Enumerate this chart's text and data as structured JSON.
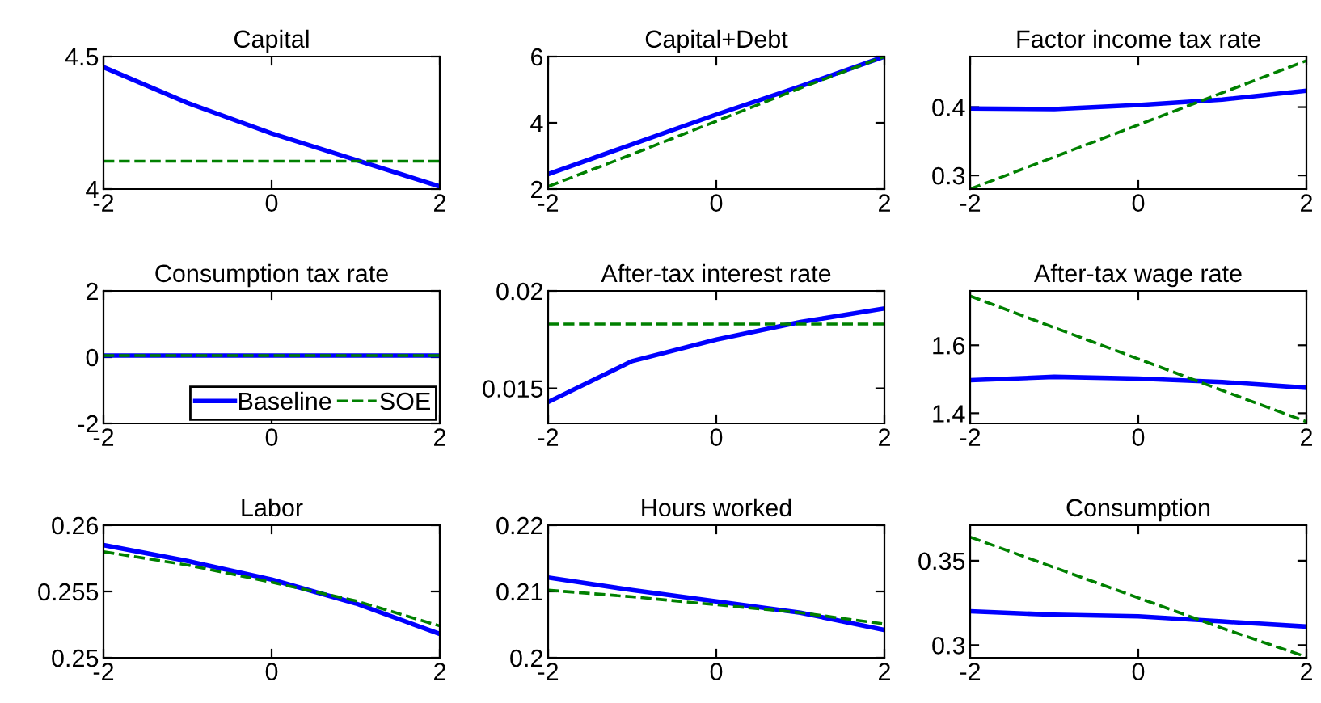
{
  "chart_data": [
    {
      "type": "line",
      "title": "Capital",
      "x": [
        -2,
        -1,
        0,
        1,
        2
      ],
      "xlim": [
        -2,
        2
      ],
      "xticks": [
        -2,
        0,
        2
      ],
      "ylim": [
        4,
        4.5
      ],
      "yticks": [
        4,
        4.5
      ],
      "series": [
        {
          "color": "#0000ff",
          "values": [
            4.46,
            4.325,
            4.21,
            4.11,
            4.01
          ]
        },
        {
          "color": "#008000",
          "line_style": "dashed",
          "values": [
            4.105,
            4.105,
            4.105,
            4.105,
            4.105
          ]
        }
      ]
    },
    {
      "type": "line",
      "title": "Capital+Debt",
      "x": [
        -2,
        -1,
        0,
        1,
        2
      ],
      "xlim": [
        -2,
        2
      ],
      "xticks": [
        -2,
        0,
        2
      ],
      "ylim": [
        2,
        6
      ],
      "yticks": [
        2,
        4,
        6
      ],
      "series": [
        {
          "color": "#0000ff",
          "values": [
            2.45,
            3.35,
            4.25,
            5.1,
            6
          ]
        },
        {
          "color": "#008000",
          "line_style": "dashed",
          "values": [
            2.08,
            3.05,
            4.05,
            5.05,
            6
          ]
        }
      ]
    },
    {
      "type": "line",
      "title": "Factor income tax rate",
      "x": [
        -2,
        -1,
        0,
        1,
        2
      ],
      "xlim": [
        -2,
        2
      ],
      "xticks": [
        -2,
        0,
        2
      ],
      "ylim": [
        0.28,
        0.474
      ],
      "yticks": [
        0.3,
        0.4
      ],
      "series": [
        {
          "color": "#0000ff",
          "values": [
            0.398,
            0.397,
            0.403,
            0.411,
            0.424
          ]
        },
        {
          "color": "#008000",
          "line_style": "dashed",
          "values": [
            0.28,
            0.327,
            0.374,
            0.421,
            0.468
          ]
        }
      ]
    },
    {
      "type": "line",
      "title": "Consumption tax rate",
      "x": [
        -2,
        -1,
        0,
        1,
        2
      ],
      "xlim": [
        -2,
        2
      ],
      "xticks": [
        -2,
        0,
        2
      ],
      "ylim": [
        -2,
        2
      ],
      "yticks": [
        -2,
        0,
        2
      ],
      "legend": "bottom right",
      "series": [
        {
          "name": "Baseline",
          "color": "#0000ff",
          "values": [
            0.05,
            0.05,
            0.05,
            0.05,
            0.05
          ]
        },
        {
          "name": "SOE",
          "color": "#008000",
          "line_style": "dashed",
          "values": [
            0.05,
            0.05,
            0.05,
            0.05,
            0.05
          ]
        }
      ]
    },
    {
      "type": "line",
      "title": "After-tax interest rate",
      "x": [
        -2,
        -1,
        0,
        1,
        2
      ],
      "xlim": [
        -2,
        2
      ],
      "xticks": [
        -2,
        0,
        2
      ],
      "ylim": [
        0.0132,
        0.02
      ],
      "yticks": [
        0.015,
        0.02
      ],
      "series": [
        {
          "color": "#0000ff",
          "values": [
            0.0143,
            0.0164,
            0.0175,
            0.0184,
            0.0191
          ]
        },
        {
          "color": "#008000",
          "line_style": "dashed",
          "values": [
            0.0183,
            0.0183,
            0.0183,
            0.0183,
            0.0183
          ]
        }
      ]
    },
    {
      "type": "line",
      "title": "After-tax wage rate",
      "x": [
        -2,
        -1,
        0,
        1,
        2
      ],
      "xlim": [
        -2,
        2
      ],
      "xticks": [
        -2,
        0,
        2
      ],
      "ylim": [
        1.37,
        1.76
      ],
      "yticks": [
        1.4,
        1.6
      ],
      "series": [
        {
          "color": "#0000ff",
          "values": [
            1.497,
            1.507,
            1.502,
            1.492,
            1.475
          ]
        },
        {
          "color": "#008000",
          "line_style": "dashed",
          "values": [
            1.745,
            1.652,
            1.56,
            1.467,
            1.375
          ]
        }
      ]
    },
    {
      "type": "line",
      "title": "Labor",
      "x": [
        -2,
        -1,
        0,
        1,
        2
      ],
      "xlim": [
        -2,
        2
      ],
      "xticks": [
        -2,
        0,
        2
      ],
      "ylim": [
        0.25,
        0.26
      ],
      "yticks": [
        0.25,
        0.255,
        0.26
      ],
      "series": [
        {
          "color": "#0000ff",
          "values": [
            0.2585,
            0.2573,
            0.2559,
            0.2541,
            0.2518
          ]
        },
        {
          "color": "#008000",
          "line_style": "dashed",
          "values": [
            0.258,
            0.257,
            0.2557,
            0.2543,
            0.2524
          ]
        }
      ]
    },
    {
      "type": "line",
      "title": "Hours worked",
      "x": [
        -2,
        -1,
        0,
        1,
        2
      ],
      "xlim": [
        -2,
        2
      ],
      "xticks": [
        -2,
        0,
        2
      ],
      "ylim": [
        0.2,
        0.22
      ],
      "yticks": [
        0.2,
        0.21,
        0.22
      ],
      "series": [
        {
          "color": "#0000ff",
          "values": [
            0.2121,
            0.2102,
            0.2085,
            0.2068,
            0.2042
          ]
        },
        {
          "color": "#008000",
          "line_style": "dashed",
          "values": [
            0.2102,
            0.2092,
            0.208,
            0.2068,
            0.2051
          ]
        }
      ]
    },
    {
      "type": "line",
      "title": "Consumption",
      "x": [
        -2,
        -1,
        0,
        1,
        2
      ],
      "xlim": [
        -2,
        2
      ],
      "xticks": [
        -2,
        0,
        2
      ],
      "ylim": [
        0.2925,
        0.371
      ],
      "yticks": [
        0.3,
        0.35
      ],
      "series": [
        {
          "color": "#0000ff",
          "values": [
            0.32,
            0.318,
            0.317,
            0.314,
            0.311
          ]
        },
        {
          "color": "#008000",
          "line_style": "dashed",
          "values": [
            0.364,
            0.346,
            0.328,
            0.31,
            0.293
          ]
        }
      ]
    }
  ]
}
